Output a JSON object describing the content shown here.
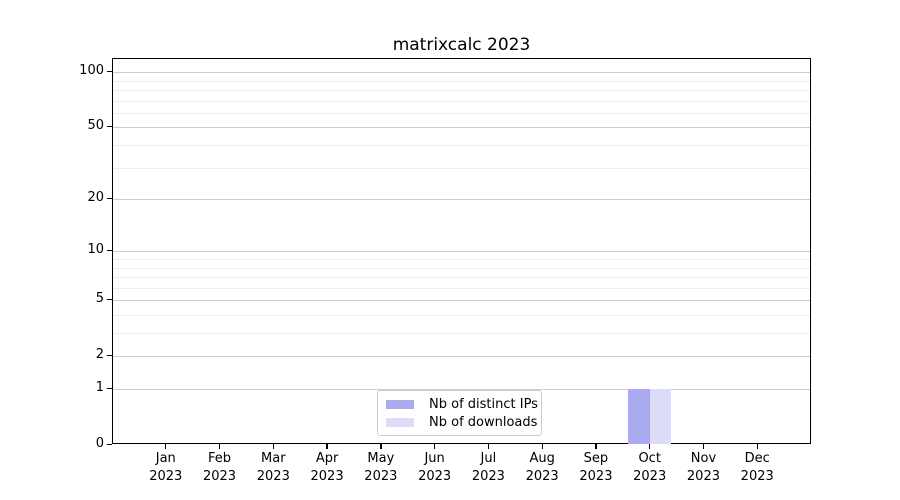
{
  "chart_data": {
    "type": "bar",
    "title": "matrixcalc 2023",
    "categories": [
      "Jan",
      "Feb",
      "Mar",
      "Apr",
      "May",
      "Jun",
      "Jul",
      "Aug",
      "Sep",
      "Oct",
      "Nov",
      "Dec"
    ],
    "xtick_year": "2023",
    "series": [
      {
        "name": "Nb of distinct IPs",
        "color": "#aaaaf0",
        "values": [
          0,
          0,
          0,
          0,
          0,
          0,
          0,
          0,
          0,
          1,
          0,
          0
        ]
      },
      {
        "name": "Nb of downloads",
        "color": "#dcdcf8",
        "values": [
          0,
          0,
          0,
          0,
          0,
          0,
          0,
          0,
          0,
          1,
          0,
          0
        ]
      }
    ],
    "yscale": "log1p",
    "ylim": [
      0,
      118
    ],
    "ytick_labels": [
      0,
      1,
      2,
      5,
      10,
      20,
      50,
      100
    ],
    "yticks_minor": [
      3,
      4,
      6,
      7,
      8,
      9,
      30,
      40,
      60,
      70,
      80,
      90
    ],
    "grid": "horizontal",
    "legend_position": "lower-center-inside",
    "colors": {
      "major_grid": "#cccccc",
      "minor_grid": "#ededed",
      "axis": "#000000",
      "background": "#ffffff"
    }
  }
}
